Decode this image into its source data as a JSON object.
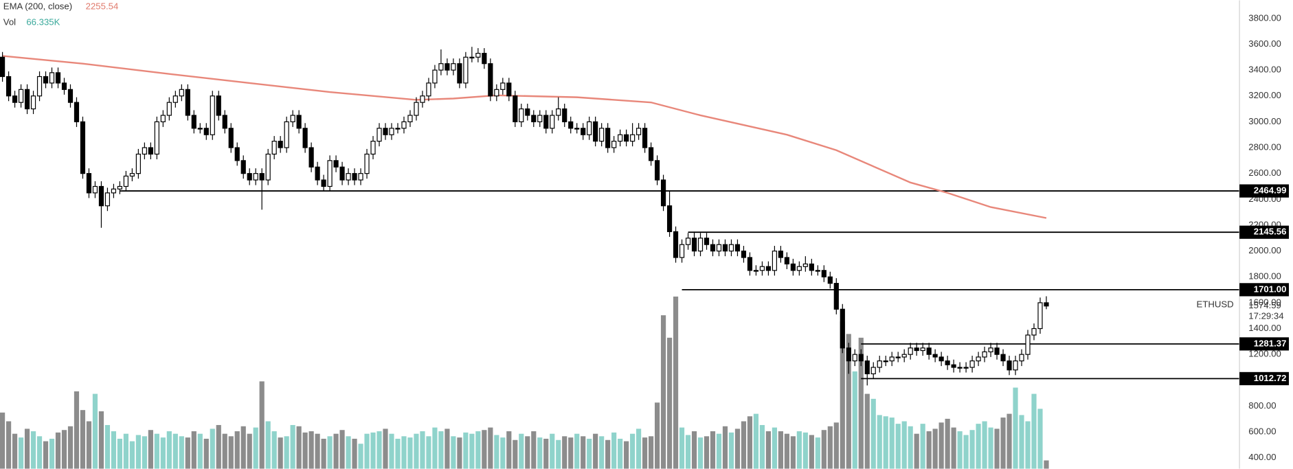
{
  "chart_data": {
    "type": "candlestick",
    "symbol": "ETHUSD",
    "countdown": "17:29:34",
    "up_color": "#ffffff",
    "down_color": "#000000",
    "open": [
      3500,
      3350,
      3200,
      3150,
      3250,
      3100,
      3200,
      3350,
      3300,
      3380,
      3300,
      3250,
      3150,
      3000,
      2600,
      2450,
      2500,
      2350,
      2450,
      2480,
      2500,
      2580,
      2600,
      2750,
      2800,
      2750,
      3000,
      3050,
      3150,
      3200,
      3250,
      3050,
      2950,
      2950,
      2900,
      3200,
      3050,
      2950,
      2800,
      2700,
      2600,
      2550,
      2600,
      2550,
      2750,
      2850,
      2800,
      3000,
      3050,
      2950,
      2800,
      2650,
      2550,
      2500,
      2700,
      2650,
      2550,
      2600,
      2550,
      2600,
      2750,
      2850,
      2950,
      2900,
      2950,
      2950,
      3000,
      3050,
      3150,
      3200,
      3300,
      3400,
      3450,
      3400,
      3450,
      3300,
      3500,
      3500,
      3530,
      3450,
      3200,
      3250,
      3300,
      3200,
      3000,
      3100,
      3050,
      3000,
      3050,
      2950,
      3050,
      3100,
      3000,
      2950,
      2950,
      2900,
      3000,
      2850,
      2950,
      2800,
      2850,
      2900,
      2850,
      2900,
      2950,
      2800,
      2700,
      2550,
      2350,
      2150,
      1950,
      2050,
      2100,
      2000,
      2100,
      2050,
      2000,
      2050,
      2000,
      2050,
      2000,
      1950,
      1850,
      1850,
      1880,
      1850,
      2000,
      1950,
      1900,
      1850,
      1880,
      1900,
      1850,
      1850,
      1800,
      1750,
      1550,
      1250,
      1150,
      1200,
      1150,
      1050,
      1100,
      1150,
      1150,
      1180,
      1180,
      1200,
      1250,
      1230,
      1250,
      1200,
      1180,
      1150,
      1120,
      1100,
      1100,
      1100,
      1150,
      1180,
      1220,
      1250,
      1200,
      1150,
      1080,
      1150,
      1200,
      1350,
      1400,
      1600
    ],
    "high": [
      3540,
      3390,
      3240,
      3290,
      3290,
      3240,
      3390,
      3390,
      3420,
      3420,
      3340,
      3290,
      3190,
      3040,
      2640,
      2540,
      2540,
      2490,
      2520,
      2540,
      2620,
      2640,
      2790,
      2840,
      2840,
      3040,
      3090,
      3190,
      3240,
      3290,
      3290,
      3090,
      2990,
      2990,
      3240,
      3240,
      3090,
      2990,
      2840,
      2740,
      2640,
      2640,
      2640,
      2790,
      2890,
      2890,
      3040,
      3090,
      3090,
      2990,
      2840,
      2690,
      2590,
      2740,
      2740,
      2690,
      2640,
      2640,
      2640,
      2790,
      2890,
      2990,
      2990,
      2990,
      2990,
      3040,
      3090,
      3190,
      3240,
      3340,
      3440,
      3560,
      3490,
      3490,
      3490,
      3540,
      3580,
      3570,
      3570,
      3490,
      3290,
      3340,
      3340,
      3240,
      3140,
      3140,
      3090,
      3090,
      3090,
      3090,
      3190,
      3140,
      3040,
      2990,
      2990,
      3040,
      3040,
      2990,
      2990,
      2890,
      2940,
      2940,
      2990,
      2990,
      2990,
      2840,
      2740,
      2590,
      2460,
      2190,
      2090,
      2140,
      2150,
      2140,
      2140,
      2090,
      2090,
      2090,
      2090,
      2090,
      2040,
      1990,
      1890,
      1920,
      1920,
      2040,
      2040,
      1990,
      1940,
      1920,
      1960,
      1940,
      1890,
      1890,
      1840,
      1790,
      1590,
      1290,
      1240,
      1240,
      1190,
      1140,
      1190,
      1190,
      1220,
      1220,
      1240,
      1290,
      1290,
      1290,
      1290,
      1240,
      1220,
      1190,
      1160,
      1140,
      1140,
      1190,
      1220,
      1260,
      1290,
      1290,
      1240,
      1190,
      1190,
      1240,
      1390,
      1440,
      1640,
      1650
    ],
    "low": [
      3310,
      3160,
      3110,
      3110,
      3060,
      3060,
      3160,
      3260,
      3260,
      3260,
      3210,
      3110,
      2960,
      2560,
      2410,
      2410,
      2180,
      2310,
      2410,
      2440,
      2460,
      2540,
      2560,
      2710,
      2710,
      2710,
      2960,
      3010,
      3110,
      3160,
      3010,
      2910,
      2910,
      2860,
      2860,
      3010,
      2910,
      2760,
      2660,
      2560,
      2510,
      2510,
      2320,
      2510,
      2710,
      2760,
      2760,
      2960,
      2910,
      2760,
      2610,
      2510,
      2460,
      2460,
      2610,
      2510,
      2510,
      2510,
      2510,
      2560,
      2710,
      2810,
      2860,
      2860,
      2910,
      2910,
      2960,
      3010,
      3110,
      3160,
      3260,
      3360,
      3360,
      3360,
      3260,
      3260,
      3460,
      3460,
      3410,
      3160,
      3160,
      3210,
      3160,
      2960,
      2960,
      3010,
      2960,
      2960,
      2910,
      2910,
      3010,
      2960,
      2910,
      2910,
      2860,
      2860,
      2810,
      2810,
      2760,
      2760,
      2810,
      2810,
      2810,
      2860,
      2760,
      2660,
      2510,
      2310,
      2110,
      1910,
      1910,
      2010,
      1960,
      1960,
      2010,
      1960,
      1960,
      1960,
      1960,
      1960,
      1910,
      1810,
      1810,
      1810,
      1810,
      1810,
      1910,
      1860,
      1810,
      1810,
      1840,
      1810,
      1810,
      1760,
      1710,
      1510,
      1210,
      1050,
      1110,
      1110,
      960,
      1010,
      1060,
      1110,
      1110,
      1140,
      1140,
      1160,
      1190,
      1190,
      1160,
      1140,
      1110,
      1080,
      1060,
      1060,
      1060,
      1060,
      1110,
      1140,
      1180,
      1160,
      1110,
      1040,
      1040,
      1110,
      1160,
      1310,
      1360,
      1550
    ],
    "close": [
      3350,
      3200,
      3150,
      3250,
      3100,
      3200,
      3350,
      3300,
      3380,
      3300,
      3250,
      3150,
      3000,
      2600,
      2450,
      2500,
      2350,
      2450,
      2480,
      2500,
      2580,
      2600,
      2750,
      2800,
      2750,
      3000,
      3050,
      3150,
      3200,
      3250,
      3050,
      2950,
      2950,
      2900,
      3200,
      3050,
      2950,
      2800,
      2700,
      2600,
      2550,
      2600,
      2550,
      2750,
      2850,
      2800,
      3000,
      3050,
      2950,
      2800,
      2650,
      2550,
      2500,
      2700,
      2650,
      2550,
      2600,
      2550,
      2600,
      2750,
      2850,
      2950,
      2900,
      2950,
      2950,
      3000,
      3050,
      3150,
      3200,
      3300,
      3400,
      3450,
      3400,
      3450,
      3300,
      3500,
      3500,
      3530,
      3450,
      3200,
      3250,
      3300,
      3200,
      3000,
      3100,
      3050,
      3000,
      3050,
      2950,
      3050,
      3100,
      3000,
      2950,
      2950,
      2900,
      3000,
      2850,
      2950,
      2800,
      2850,
      2900,
      2850,
      2900,
      2950,
      2800,
      2700,
      2550,
      2350,
      2150,
      1950,
      2050,
      2100,
      2000,
      2100,
      2050,
      2000,
      2050,
      2000,
      2050,
      2000,
      1950,
      1850,
      1850,
      1880,
      1850,
      2000,
      1950,
      1900,
      1850,
      1880,
      1900,
      1850,
      1850,
      1800,
      1750,
      1550,
      1250,
      1150,
      1200,
      1150,
      1050,
      1100,
      1150,
      1150,
      1180,
      1180,
      1200,
      1250,
      1230,
      1250,
      1200,
      1180,
      1150,
      1120,
      1100,
      1100,
      1100,
      1150,
      1180,
      1220,
      1250,
      1200,
      1150,
      1080,
      1150,
      1200,
      1350,
      1400,
      1600,
      1574.59
    ],
    "volume": {
      "name": "Vol",
      "last_label": "66.335K",
      "up_color": "#8fd3cb",
      "down_color": "#8c8c8c",
      "ylim": [
        0,
        3755
      ],
      "values": [
        450,
        380,
        280,
        250,
        320,
        300,
        260,
        220,
        240,
        290,
        310,
        340,
        620,
        470,
        380,
        600,
        460,
        350,
        300,
        240,
        280,
        220,
        270,
        260,
        310,
        280,
        250,
        300,
        280,
        260,
        250,
        300,
        280,
        240,
        320,
        350,
        280,
        260,
        300,
        340,
        280,
        330,
        700,
        380,
        300,
        250,
        260,
        350,
        340,
        290,
        300,
        280,
        240,
        260,
        280,
        310,
        260,
        240,
        200,
        280,
        290,
        300,
        320,
        280,
        240,
        260,
        250,
        280,
        300,
        260,
        330,
        300,
        320,
        260,
        250,
        290,
        280,
        300,
        310,
        330,
        270,
        250,
        300,
        230,
        280,
        260,
        300,
        250,
        240,
        280,
        230,
        260,
        250,
        280,
        260,
        240,
        280,
        260,
        230,
        290,
        240,
        220,
        280,
        320,
        250,
        260,
        530,
        1230,
        1050,
        1380,
        330,
        270,
        300,
        250,
        260,
        300,
        280,
        340,
        290,
        320,
        380,
        420,
        440,
        350,
        300,
        330,
        300,
        280,
        260,
        300,
        290,
        270,
        250,
        310,
        340,
        370,
        1180,
        1080,
        780,
        1050,
        600,
        560,
        430,
        420,
        410,
        360,
        380,
        340,
        280,
        360,
        300,
        320,
        370,
        400,
        330,
        300,
        270,
        310,
        360,
        380,
        330,
        320,
        410,
        440,
        650,
        430,
        380,
        600,
        480,
        66.335
      ]
    },
    "ema": {
      "name": "EMA (200, close)",
      "color": "#e8877a",
      "x": [
        0,
        13,
        27,
        40,
        53,
        67,
        73,
        80,
        93,
        105,
        113,
        127,
        135,
        147,
        153,
        160,
        169
      ],
      "values": [
        3510,
        3450,
        3370,
        3300,
        3230,
        3170,
        3180,
        3205,
        3190,
        3150,
        3050,
        2900,
        2780,
        2530,
        2450,
        2340,
        2255.54
      ]
    },
    "levels": [
      {
        "value": 2464.99,
        "from": 19
      },
      {
        "value": 2145.56,
        "from": 111
      },
      {
        "value": 1701,
        "label": "1701.00",
        "from": 110
      },
      {
        "value": 1281.37,
        "from": 139
      },
      {
        "value": 1012.72,
        "from": 139
      }
    ],
    "ylim": [
      316,
      3940
    ],
    "yticks": [
      {
        "value": 400,
        "label": "400.00"
      },
      {
        "value": 600,
        "label": "600.00"
      },
      {
        "value": 800,
        "label": "800.00"
      },
      {
        "value": 1000,
        "label": "1000.00"
      },
      {
        "value": 1200,
        "label": "1200.00"
      },
      {
        "value": 1400,
        "label": "1400.00"
      },
      {
        "value": 1600,
        "label": "1600.00"
      },
      {
        "value": 1800,
        "label": "1800.00"
      },
      {
        "value": 2000,
        "label": "2000.00"
      },
      {
        "value": 2200,
        "label": "2200.00"
      },
      {
        "value": 2400,
        "label": "2400.00"
      },
      {
        "value": 2600,
        "label": "2600.00"
      },
      {
        "value": 2800,
        "label": "2800.00"
      },
      {
        "value": 3000,
        "label": "3000.00"
      },
      {
        "value": 3200,
        "label": "3200.00"
      },
      {
        "value": 3400,
        "label": "3400.00"
      },
      {
        "value": 3600,
        "label": "3600.00"
      },
      {
        "value": 3800,
        "label": "3800.00"
      }
    ]
  }
}
